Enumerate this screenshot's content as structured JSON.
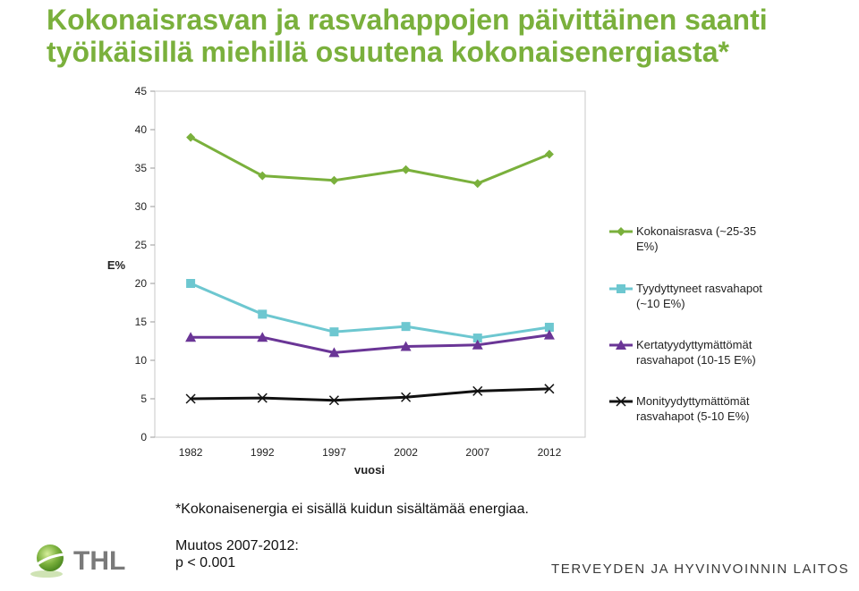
{
  "title": {
    "line1": "Kokonaisrasvan ja rasvahappojen päivittäinen saanti",
    "line2": "työikäisillä miehillä osuutena kokonaisenergiasta*"
  },
  "chart_data": {
    "type": "line",
    "ylabel": "E%",
    "xlabel": "vuosi",
    "x": [
      "1982",
      "1992",
      "1997",
      "2002",
      "2007",
      "2012"
    ],
    "ylim": [
      0,
      45
    ],
    "yticks": [
      "0",
      "5",
      "10",
      "15",
      "20",
      "25",
      "30",
      "35",
      "40",
      "45"
    ],
    "grid": false,
    "legend_position": "right",
    "series": [
      {
        "name": "Kokonaisrasva (~25-35 E%)",
        "label_lines": [
          "Kokonaisrasva (~25-35",
          "E%)"
        ],
        "color": "#7ab03c",
        "marker": "diamond",
        "values": [
          39.0,
          34.0,
          33.4,
          34.8,
          33.0,
          36.8
        ]
      },
      {
        "name": "Tyydyttyneet rasvahapot (~10 E%)",
        "label_lines": [
          "Tyydyttyneet rasvahapot",
          "(~10 E%)"
        ],
        "color": "#6dc7d0",
        "marker": "square",
        "values": [
          20.0,
          16.0,
          13.7,
          14.4,
          12.9,
          14.3
        ]
      },
      {
        "name": "Kertatyydyttymättömät rasvahapot (10-15 E%)",
        "label_lines": [
          "Kertatyydyttymättömät",
          "rasvahapot (10-15 E%)"
        ],
        "color": "#6a3596",
        "marker": "triangle",
        "values": [
          13.0,
          13.0,
          11.0,
          11.8,
          12.0,
          13.3
        ]
      },
      {
        "name": "Monityydyttymättömät rasvahapot (5-10 E%)",
        "label_lines": [
          "Monityydyttymättömät",
          "rasvahapot (5-10 E%)"
        ],
        "color": "#111111",
        "marker": "x",
        "values": [
          5.0,
          5.1,
          4.8,
          5.2,
          6.0,
          6.3
        ]
      }
    ]
  },
  "footnote": "*Kokonaisenergia ei sisällä kuidun sisältämää energiaa.",
  "change": {
    "line1": "Muutos 2007-2012:",
    "line2": "p < 0.001"
  },
  "logo": {
    "text": "THL",
    "accent": "#7ab03c"
  },
  "organization": "TERVEYDEN JA HYVINVOINNIN LAITOS"
}
